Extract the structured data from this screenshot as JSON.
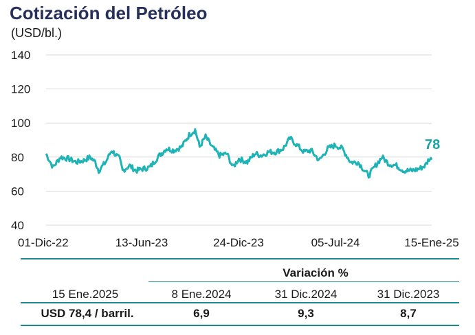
{
  "chart_data": {
    "type": "line",
    "title": "Cotización del Petróleo",
    "ylabel": "(USD/bl.)",
    "ylim": [
      40,
      140
    ],
    "yticks": [
      "140",
      "120",
      "100",
      "80",
      "60",
      "40"
    ],
    "xticks": [
      "01-Dic-22",
      "13-Jun-23",
      "24-Dic-23",
      "05-Jul-24",
      "15-Ene-25"
    ],
    "x_range": [
      "2022-12-01",
      "2025-01-15"
    ],
    "grid": true,
    "last_value_label": "78",
    "series": [
      {
        "color": "#1fb3b5",
        "points": [
          [
            "2022-12-01",
            82
          ],
          [
            "2022-12-15",
            74
          ],
          [
            "2022-12-30",
            80
          ],
          [
            "2023-01-15",
            79
          ],
          [
            "2023-01-31",
            77
          ],
          [
            "2023-02-15",
            78
          ],
          [
            "2023-02-28",
            80
          ],
          [
            "2023-03-10",
            77
          ],
          [
            "2023-03-17",
            72
          ],
          [
            "2023-03-31",
            77
          ],
          [
            "2023-04-12",
            84
          ],
          [
            "2023-04-28",
            79
          ],
          [
            "2023-05-04",
            72
          ],
          [
            "2023-05-18",
            75
          ],
          [
            "2023-05-31",
            72
          ],
          [
            "2023-06-13",
            73
          ],
          [
            "2023-06-28",
            74
          ],
          [
            "2023-07-14",
            80
          ],
          [
            "2023-07-31",
            85
          ],
          [
            "2023-08-15",
            84
          ],
          [
            "2023-08-31",
            86
          ],
          [
            "2023-09-15",
            93
          ],
          [
            "2023-09-27",
            96
          ],
          [
            "2023-10-06",
            86
          ],
          [
            "2023-10-18",
            92
          ],
          [
            "2023-10-31",
            86
          ],
          [
            "2023-11-15",
            81
          ],
          [
            "2023-11-30",
            82
          ],
          [
            "2023-12-12",
            74
          ],
          [
            "2023-12-24",
            79
          ],
          [
            "2024-01-10",
            77
          ],
          [
            "2024-01-25",
            82
          ],
          [
            "2024-02-08",
            81
          ],
          [
            "2024-02-22",
            83
          ],
          [
            "2024-03-08",
            83
          ],
          [
            "2024-03-22",
            85
          ],
          [
            "2024-04-05",
            91
          ],
          [
            "2024-04-19",
            87
          ],
          [
            "2024-05-03",
            83
          ],
          [
            "2024-05-17",
            84
          ],
          [
            "2024-06-03",
            78
          ],
          [
            "2024-06-20",
            85
          ],
          [
            "2024-07-05",
            87
          ],
          [
            "2024-07-19",
            85
          ],
          [
            "2024-08-05",
            77
          ],
          [
            "2024-08-20",
            77
          ],
          [
            "2024-09-10",
            69
          ],
          [
            "2024-09-24",
            75
          ],
          [
            "2024-10-07",
            80
          ],
          [
            "2024-10-21",
            76
          ],
          [
            "2024-11-05",
            75
          ],
          [
            "2024-11-20",
            72
          ],
          [
            "2024-12-05",
            72
          ],
          [
            "2024-12-20",
            73
          ],
          [
            "2025-01-02",
            75
          ],
          [
            "2025-01-10",
            79
          ],
          [
            "2025-01-15",
            78.4
          ]
        ]
      }
    ]
  },
  "table": {
    "header": "Variación %",
    "date_label": "15 Ene.2025",
    "columns": [
      "8 Ene.2024",
      "31 Dic.2024",
      "31 Dic.2023"
    ],
    "price_label": "USD 78,4 / barril.",
    "values": [
      "6,9",
      "9,3",
      "8,7"
    ]
  },
  "colors": {
    "line": "#1fb3b5",
    "accent": "#1a8a8c",
    "title": "#27305a"
  }
}
